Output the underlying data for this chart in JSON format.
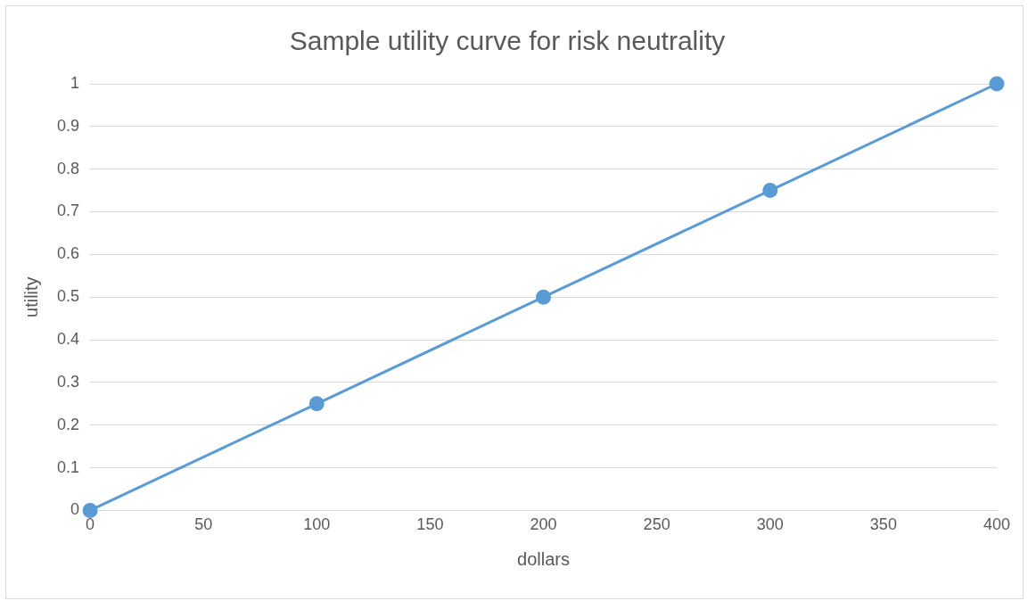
{
  "chart_data": {
    "type": "line",
    "title": "Sample utility curve for risk neutrality",
    "xlabel": "dollars",
    "ylabel": "utility",
    "x": [
      0,
      100,
      200,
      300,
      400
    ],
    "series": [
      {
        "color": "#5b9bd5",
        "values": [
          0,
          0.25,
          0.5,
          0.75,
          1
        ]
      }
    ],
    "xlim": [
      0,
      400
    ],
    "xticks": [
      0,
      50,
      100,
      150,
      200,
      250,
      300,
      350,
      400
    ],
    "ylim": [
      0,
      1
    ],
    "yticks": [
      0,
      0.1,
      0.2,
      0.3,
      0.4,
      0.5,
      0.6,
      0.7,
      0.8,
      0.9,
      1
    ],
    "grid": "y",
    "legend": false,
    "marker": "circle",
    "line_style": "solid"
  }
}
